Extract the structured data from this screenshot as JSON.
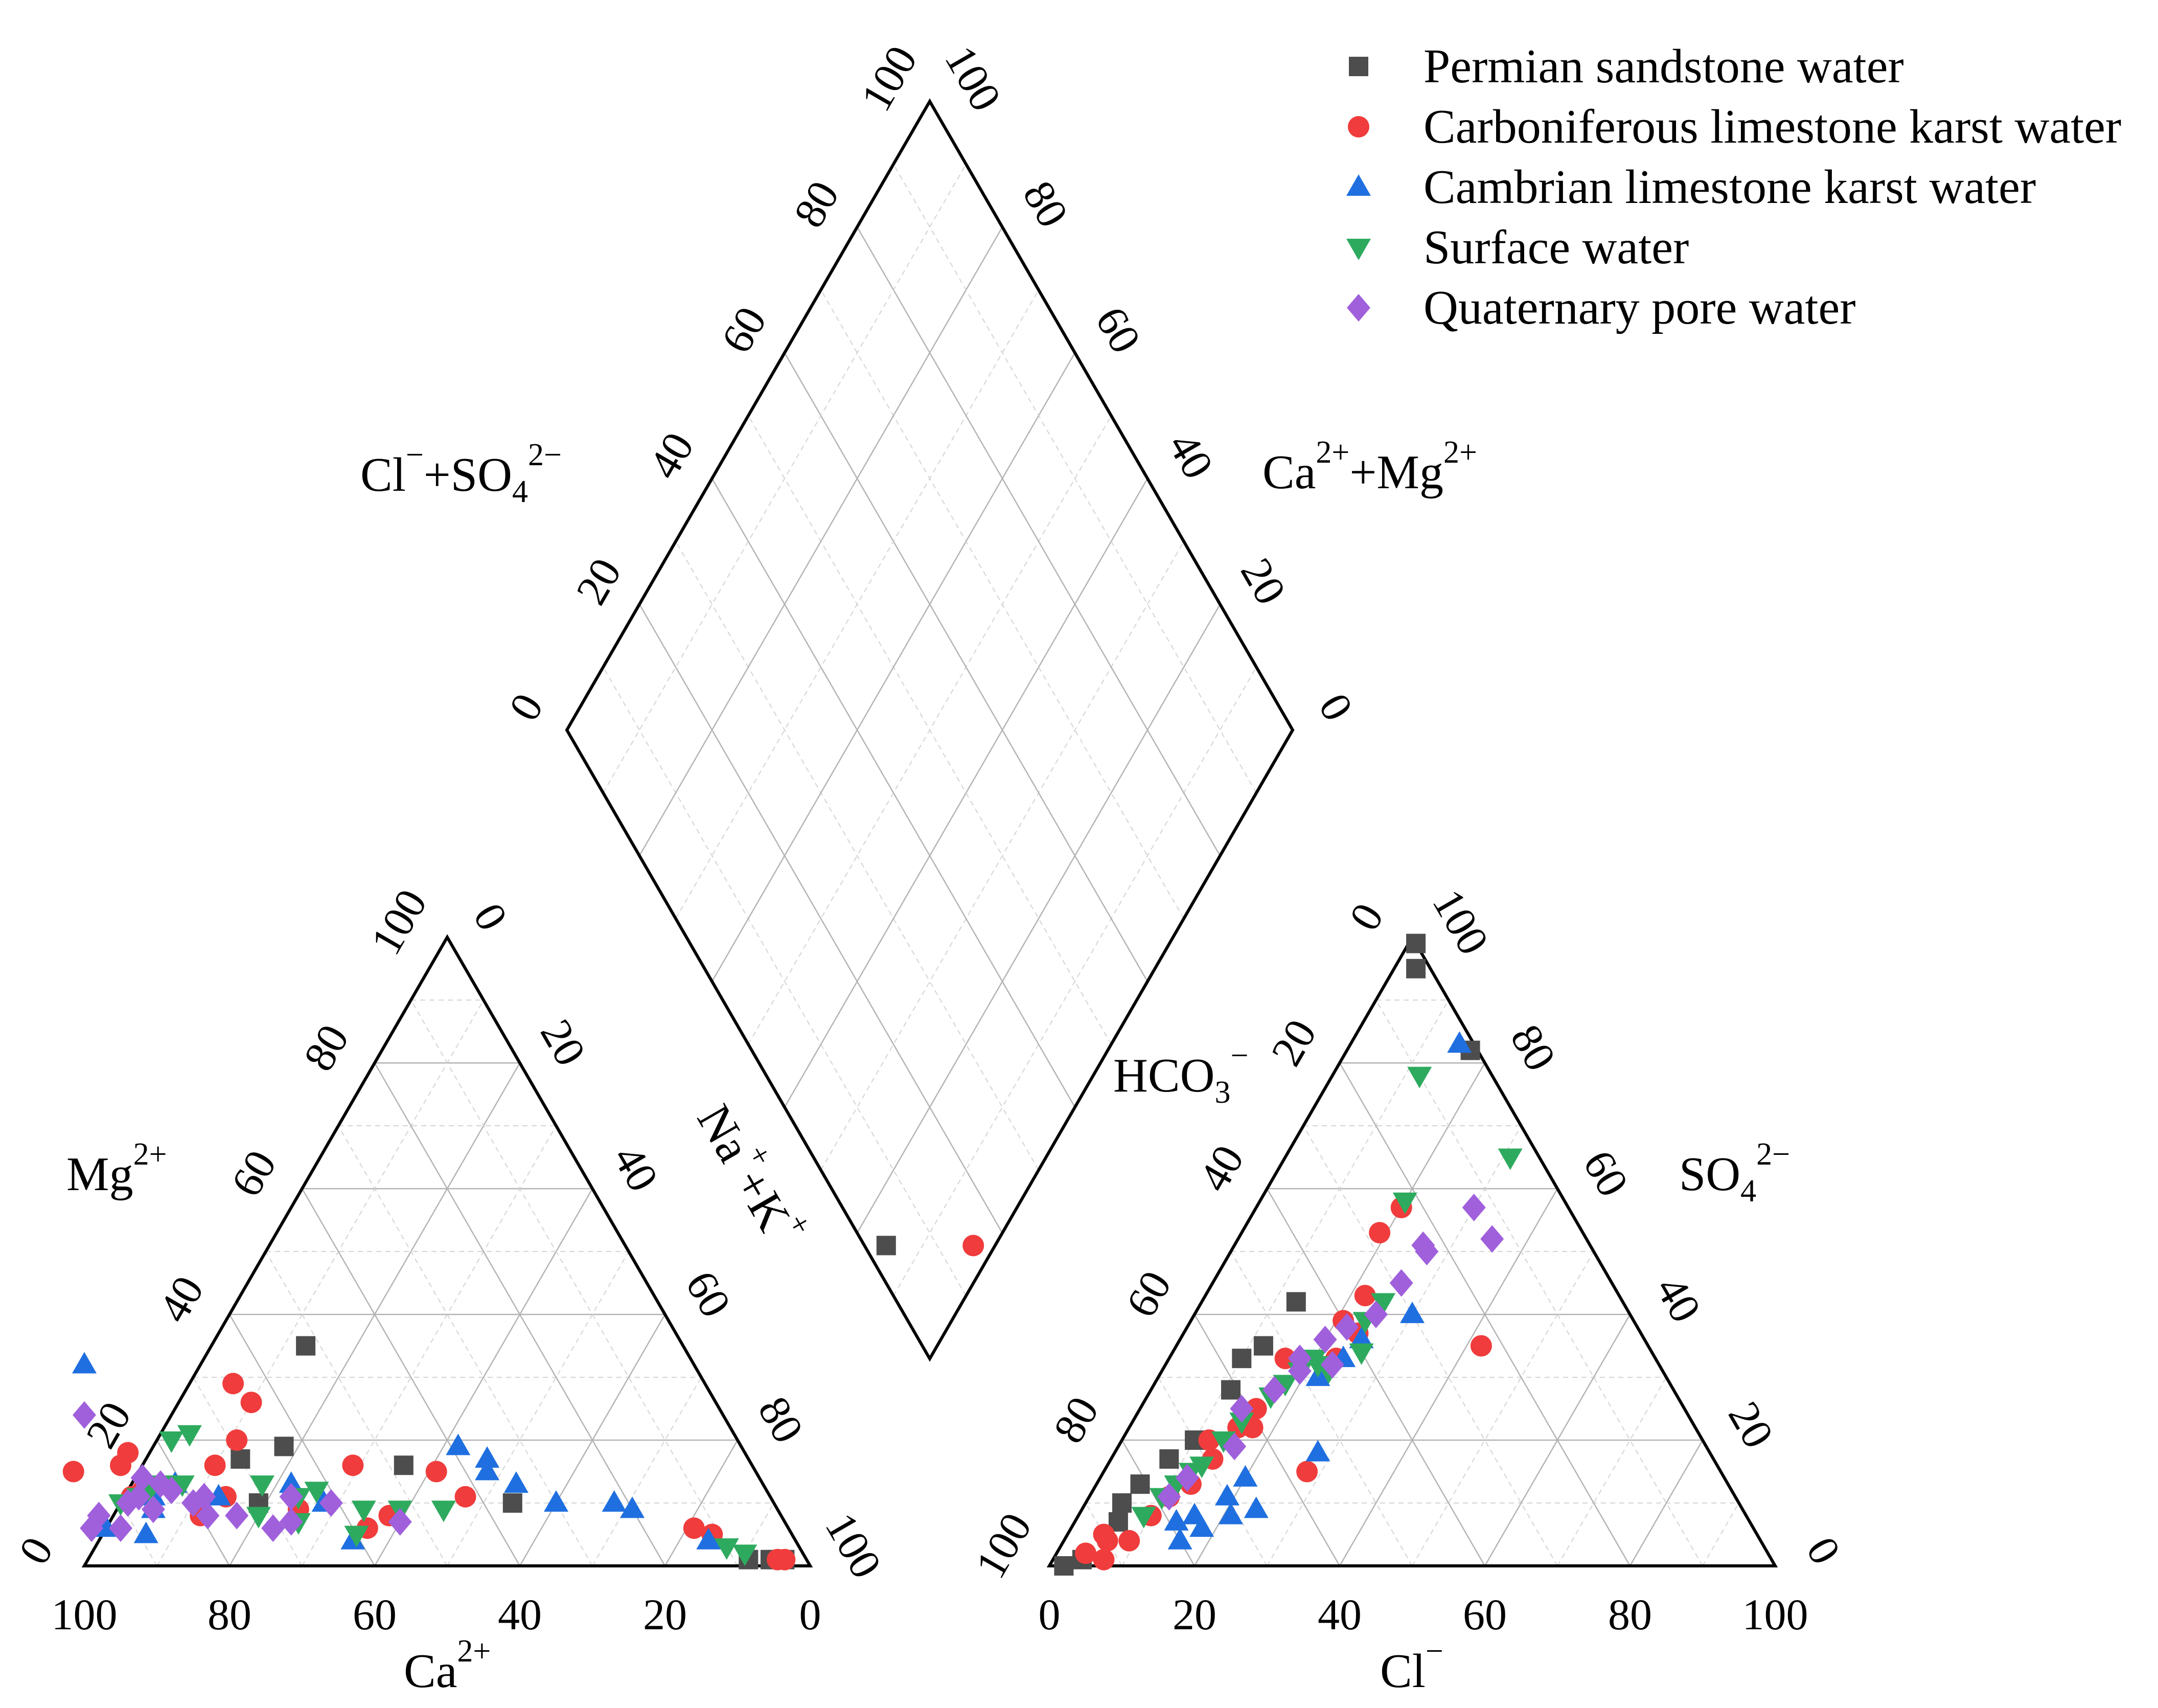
{
  "chart_data": {
    "type": "scatter",
    "subtype": "piper-diagram",
    "title": "",
    "grid": true,
    "legend_position": "top-right",
    "axes": {
      "cation": {
        "x_title": {
          "text": "Ca",
          "sup": "2+"
        },
        "left_title": {
          "text": "Mg",
          "sup": "2+"
        },
        "right_title": {
          "text": "Na",
          "sup": "+",
          "text2": "+K",
          "sup2": "+"
        },
        "ticks": [
          "0",
          "20",
          "40",
          "60",
          "80",
          "100"
        ]
      },
      "anion": {
        "x_title": {
          "text": "Cl",
          "sup": "−"
        },
        "left_title": {
          "text": "HCO",
          "sub": "3",
          "sup": "−"
        },
        "right_title": {
          "text": "SO",
          "sub": "4",
          "sup": "2−"
        },
        "ticks": [
          "0",
          "20",
          "40",
          "60",
          "80",
          "100"
        ]
      },
      "diamond": {
        "left_title": {
          "text": "Cl",
          "sup": "−",
          "text2": "+SO",
          "sub2": "4",
          "sup2": "2−"
        },
        "right_title": {
          "text": "Ca",
          "sup": "2+",
          "text2": "+Mg",
          "sup2": "2+"
        },
        "ticks": [
          "0",
          "20",
          "40",
          "60",
          "80",
          "100"
        ]
      }
    },
    "series": [
      {
        "name": "Permian sandstone water",
        "marker": "square",
        "color": "#4d4d4d",
        "cation": [
          [
            71,
            10
          ],
          [
            70,
            17
          ],
          [
            63,
            19
          ],
          [
            52,
            35
          ],
          [
            48,
            16
          ],
          [
            36,
            10
          ],
          [
            8,
            1
          ],
          [
            5,
            1
          ],
          [
            4,
            1
          ],
          [
            3,
            1
          ]
        ],
        "anion": [
          [
            2,
            0
          ],
          [
            4,
            1
          ],
          [
            6,
            7
          ],
          [
            5,
            10
          ],
          [
            6,
            13
          ],
          [
            8,
            17
          ],
          [
            10,
            20
          ],
          [
            11,
            28
          ],
          [
            10,
            33
          ],
          [
            12,
            35
          ],
          [
            13,
            42
          ],
          [
            17,
            82
          ],
          [
            3,
            95
          ],
          [
            1,
            99
          ]
        ],
        "diamond": [
          [
            3,
            15
          ]
        ]
      },
      {
        "name": "Carboniferous limestone karst water",
        "marker": "circle",
        "color": "#f03c3c",
        "cation": [
          [
            94,
            15
          ],
          [
            88,
            11
          ],
          [
            87,
            16
          ],
          [
            86,
            12
          ],
          [
            85,
            18
          ],
          [
            80,
            8
          ],
          [
            79,
            10
          ],
          [
            75,
            11
          ],
          [
            74,
            16
          ],
          [
            69,
            20
          ],
          [
            66,
            9
          ],
          [
            65,
            29
          ],
          [
            64,
            26
          ],
          [
            58,
            6
          ],
          [
            55,
            16
          ],
          [
            54,
            8
          ],
          [
            44,
            15
          ],
          [
            42,
            11
          ],
          [
            13,
            6
          ],
          [
            11,
            5
          ],
          [
            4,
            1
          ],
          [
            3,
            1
          ]
        ],
        "anion": [
          [
            4,
            2
          ],
          [
            5,
            5
          ],
          [
            6,
            4
          ],
          [
            7,
            1
          ],
          [
            9,
            4
          ],
          [
            10,
            8
          ],
          [
            11,
            11
          ],
          [
            13,
            13
          ],
          [
            12,
            20
          ],
          [
            14,
            17
          ],
          [
            15,
            22
          ],
          [
            16,
            25
          ],
          [
            17,
            22
          ],
          [
            16,
            33
          ],
          [
            21,
            39
          ],
          [
            23,
            33
          ],
          [
            24,
            37
          ],
          [
            22,
            43
          ],
          [
            19,
            53
          ],
          [
            20,
            57
          ],
          [
            28,
            15
          ],
          [
            42,
            35
          ]
        ],
        "diamond": [
          [
            15,
            3
          ]
        ]
      },
      {
        "name": "Cambrian limestone karst water",
        "marker": "triangle-up",
        "color": "#1f6fe0",
        "cation": [
          [
            94,
            6
          ],
          [
            89,
            5
          ],
          [
            86,
            9
          ],
          [
            85,
            11
          ],
          [
            84,
            32
          ],
          [
            81,
            13
          ],
          [
            76,
            11
          ],
          [
            65,
            13
          ],
          [
            62,
            10
          ],
          [
            61,
            4
          ],
          [
            39,
            19
          ],
          [
            37,
            15
          ],
          [
            36,
            17
          ],
          [
            34,
            13
          ],
          [
            30,
            10
          ],
          [
            22,
            10
          ],
          [
            20,
            9
          ],
          [
            12,
            4
          ]
        ],
        "anion": [
          [
            14,
            7
          ],
          [
            16,
            4
          ],
          [
            16,
            8
          ],
          [
            18,
            6
          ],
          [
            19,
            11
          ],
          [
            20,
            14
          ],
          [
            21,
            8
          ],
          [
            24,
            9
          ],
          [
            28,
            18
          ],
          [
            22,
            30
          ],
          [
            24,
            33
          ],
          [
            25,
            36
          ],
          [
            30,
            40
          ],
          [
            15,
            83
          ]
        ],
        "diamond": []
      },
      {
        "name": "Surface water",
        "marker": "triangle-down",
        "color": "#2eaa5e",
        "cation": [
          [
            90,
            10
          ],
          [
            87,
            11
          ],
          [
            85,
            12
          ],
          [
            83,
            13
          ],
          [
            80,
            13
          ],
          [
            78,
            20
          ],
          [
            75,
            21
          ],
          [
            72,
            8
          ],
          [
            69,
            13
          ],
          [
            67,
            7
          ],
          [
            65,
            11
          ],
          [
            62,
            12
          ],
          [
            60,
            5
          ],
          [
            57,
            9
          ],
          [
            52,
            9
          ],
          [
            46,
            9
          ],
          [
            10,
            3
          ],
          [
            8,
            2
          ]
        ],
        "anion": [
          [
            9,
            8
          ],
          [
            10,
            11
          ],
          [
            11,
            13
          ],
          [
            12,
            15
          ],
          [
            13,
            16
          ],
          [
            14,
            20
          ],
          [
            15,
            23
          ],
          [
            17,
            27
          ],
          [
            18,
            29
          ],
          [
            19,
            31
          ],
          [
            20,
            33
          ],
          [
            21,
            32
          ],
          [
            23,
            31
          ],
          [
            26,
            34
          ],
          [
            24,
            39
          ],
          [
            25,
            42
          ],
          [
            20,
            58
          ],
          [
            31,
            65
          ],
          [
            12,
            78
          ]
        ],
        "diamond": []
      },
      {
        "name": "Quaternary pore water",
        "marker": "diamond",
        "color": "#a060dc",
        "cation": [
          [
            96,
            6
          ],
          [
            94,
            8
          ],
          [
            92,
            6
          ],
          [
            89,
            10
          ],
          [
            88,
            24
          ],
          [
            87,
            11
          ],
          [
            86,
            9
          ],
          [
            85,
            14
          ],
          [
            83,
            13
          ],
          [
            82,
            12
          ],
          [
            80,
            10
          ],
          [
            79,
            8
          ],
          [
            78,
            11
          ],
          [
            75,
            8
          ],
          [
            71,
            6
          ],
          [
            68,
            7
          ],
          [
            66,
            11
          ],
          [
            61,
            10
          ],
          [
            53,
            7
          ]
        ],
        "anion": [
          [
            11,
            11
          ],
          [
            12,
            14
          ],
          [
            14,
            25
          ],
          [
            17,
            28
          ],
          [
            18,
            33
          ],
          [
            19,
            31
          ],
          [
            20,
            36
          ],
          [
            22,
            38
          ],
          [
            23,
            32
          ],
          [
            25,
            40
          ],
          [
            26,
            45
          ],
          [
            27,
            50
          ],
          [
            26,
            51
          ],
          [
            30,
            57
          ],
          [
            35,
            52
          ],
          [
            16,
            19
          ]
        ],
        "diamond": []
      }
    ]
  }
}
